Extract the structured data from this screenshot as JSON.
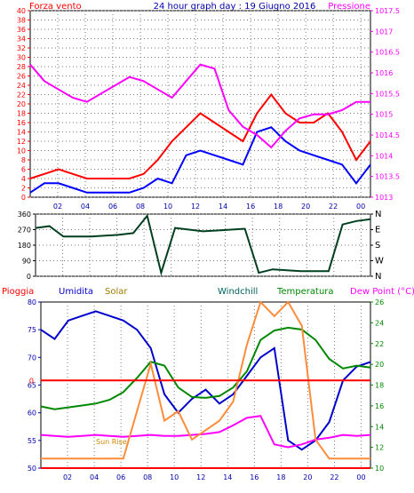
{
  "colors": {
    "wind": "#ff0000",
    "gust": "#0000ff",
    "pressure": "#ff00ff",
    "direction": "#004020",
    "rain": "#ff0000",
    "humidity": "#0000cc",
    "solar": "#ff8c3a",
    "windchill": "#006060",
    "temperature": "#008800",
    "dewpoint": "#ff00ff",
    "frame": "#000000",
    "grid": "#7a7a7a",
    "axis_red": "#ff0000",
    "axis_magenta": "#ff00ff",
    "axis_blue": "#0000aa",
    "axis_green": "#008800"
  },
  "chart_data": [
    {
      "type": "line",
      "title": "24 hour graph day : 19 Giugno 2016",
      "left_label": "Forza vento",
      "right_label": "Pressione",
      "x_ticks": [
        "02",
        "04",
        "06",
        "08",
        "10",
        "12",
        "14",
        "16",
        "18",
        "20",
        "22",
        "00"
      ],
      "y_ticks": [
        "0",
        "2",
        "4",
        "6",
        "8",
        "10",
        "12",
        "14",
        "16",
        "18",
        "20",
        "22",
        "24",
        "26",
        "28",
        "30",
        "32",
        "34",
        "36",
        "38",
        "40"
      ],
      "y2_ticks": [
        "1013",
        "1013.5",
        "1014",
        "1014.5",
        "1015",
        "1015.5",
        "1016",
        "1016.5",
        "1017",
        "1017.5"
      ],
      "x": [
        0,
        1,
        2,
        3,
        4,
        5,
        6,
        7,
        8,
        9,
        10,
        11,
        12,
        13,
        14,
        15,
        16,
        17,
        18,
        19,
        20,
        21,
        22,
        23,
        24
      ],
      "series": [
        {
          "color_key": "wind",
          "axis": "left",
          "values": [
            4,
            5,
            6,
            5,
            4,
            4,
            4,
            4,
            5,
            8,
            12,
            15,
            18,
            16,
            14,
            12,
            18,
            22,
            18,
            16,
            16,
            18,
            14,
            8,
            12
          ]
        },
        {
          "color_key": "gust",
          "axis": "left",
          "values": [
            1,
            3,
            3,
            2,
            1,
            1,
            1,
            1,
            2,
            4,
            3,
            9,
            10,
            9,
            8,
            7,
            14,
            15,
            12,
            10,
            9,
            8,
            7,
            3,
            7
          ]
        },
        {
          "color_key": "pressure",
          "axis": "right",
          "values": [
            1016.2,
            1015.8,
            1015.6,
            1015.4,
            1015.3,
            1015.5,
            1015.7,
            1015.9,
            1015.8,
            1015.6,
            1015.4,
            1015.8,
            1016.2,
            1016.1,
            1015.1,
            1014.7,
            1014.5,
            1014.2,
            1014.6,
            1014.9,
            1015.0,
            1015.0,
            1015.1,
            1015.3,
            1015.3
          ]
        }
      ]
    },
    {
      "type": "line",
      "y_ticks": [
        "0",
        "90",
        "180",
        "270",
        "360"
      ],
      "y2_ticks": [
        "N",
        "W",
        "S",
        "E",
        "N"
      ],
      "x_ticks": [
        "02",
        "04",
        "06",
        "08",
        "10",
        "12",
        "14",
        "16",
        "18",
        "20",
        "22",
        "00"
      ],
      "x": [
        0,
        1,
        2,
        3,
        4,
        5,
        6,
        7,
        8,
        9,
        10,
        11,
        12,
        13,
        14,
        15,
        16,
        17,
        18,
        19,
        20,
        21,
        22,
        23,
        24
      ],
      "series": [
        {
          "color_key": "direction",
          "values": [
            280,
            290,
            230,
            230,
            230,
            235,
            240,
            250,
            350,
            20,
            280,
            270,
            260,
            265,
            270,
            275,
            20,
            40,
            35,
            30,
            30,
            30,
            300,
            320,
            330
          ]
        }
      ]
    },
    {
      "type": "line",
      "labels": [
        "Pioggia",
        "Umidita",
        "Solar",
        "Windchill",
        "Temperatura",
        "Dew Point (°C)"
      ],
      "annotation": "Sun Rise",
      "rain_axis_ticks": [
        "0"
      ],
      "y_ticks": [
        "50",
        "55",
        "60",
        "65",
        "70",
        "75",
        "80"
      ],
      "y2_ticks": [
        "10",
        "12",
        "14",
        "16",
        "18",
        "20",
        "22",
        "24",
        "26"
      ],
      "x_ticks": [
        "02",
        "04",
        "06",
        "08",
        "10",
        "12",
        "14",
        "16",
        "18",
        "20",
        "22",
        "00"
      ],
      "x": [
        0,
        1,
        2,
        3,
        4,
        5,
        6,
        7,
        8,
        9,
        10,
        11,
        12,
        13,
        14,
        15,
        16,
        17,
        18,
        19,
        20,
        21,
        22,
        23,
        24
      ],
      "series": [
        {
          "color_key": "humidity",
          "axis": "left",
          "values": [
            76,
            74,
            78,
            79,
            80,
            79,
            78,
            76,
            72,
            62,
            58,
            61,
            63,
            60,
            62,
            66,
            70,
            72,
            52,
            50,
            52,
            56,
            65,
            68,
            69
          ]
        },
        {
          "color_key": "temperature",
          "axis": "right",
          "values": [
            15.5,
            15.2,
            15.4,
            15.6,
            15.8,
            16.2,
            17,
            18.5,
            20.2,
            19.8,
            17.5,
            16.5,
            16.4,
            16.6,
            17.5,
            19.2,
            22.5,
            23.5,
            23.8,
            23.6,
            22.5,
            20.5,
            19.5,
            19.8,
            19.6
          ]
        },
        {
          "color_key": "dewpoint",
          "axis": "right",
          "values": [
            12.5,
            12.4,
            12.3,
            12.4,
            12.5,
            12.4,
            12.3,
            12.4,
            12.5,
            12.4,
            12.4,
            12.5,
            12.6,
            12.8,
            13.5,
            14.3,
            14.5,
            11.5,
            11.2,
            11.5,
            12,
            12.2,
            12.5,
            12.4,
            12.5
          ]
        },
        {
          "color_key": "solar",
          "axis": "right",
          "values": [
            10,
            10,
            10,
            10,
            10,
            10,
            10,
            15,
            20,
            14,
            15,
            12,
            13,
            14,
            16,
            22,
            28,
            25,
            27,
            24,
            12,
            10,
            10,
            10,
            10
          ]
        },
        {
          "color_key": "rain",
          "axis": "left",
          "values": [
            0,
            0,
            0,
            0,
            0,
            0,
            0,
            0,
            0,
            0,
            0,
            0,
            0,
            0,
            0,
            0,
            0,
            0,
            0,
            0,
            0,
            0,
            0,
            0,
            0
          ]
        }
      ]
    }
  ]
}
